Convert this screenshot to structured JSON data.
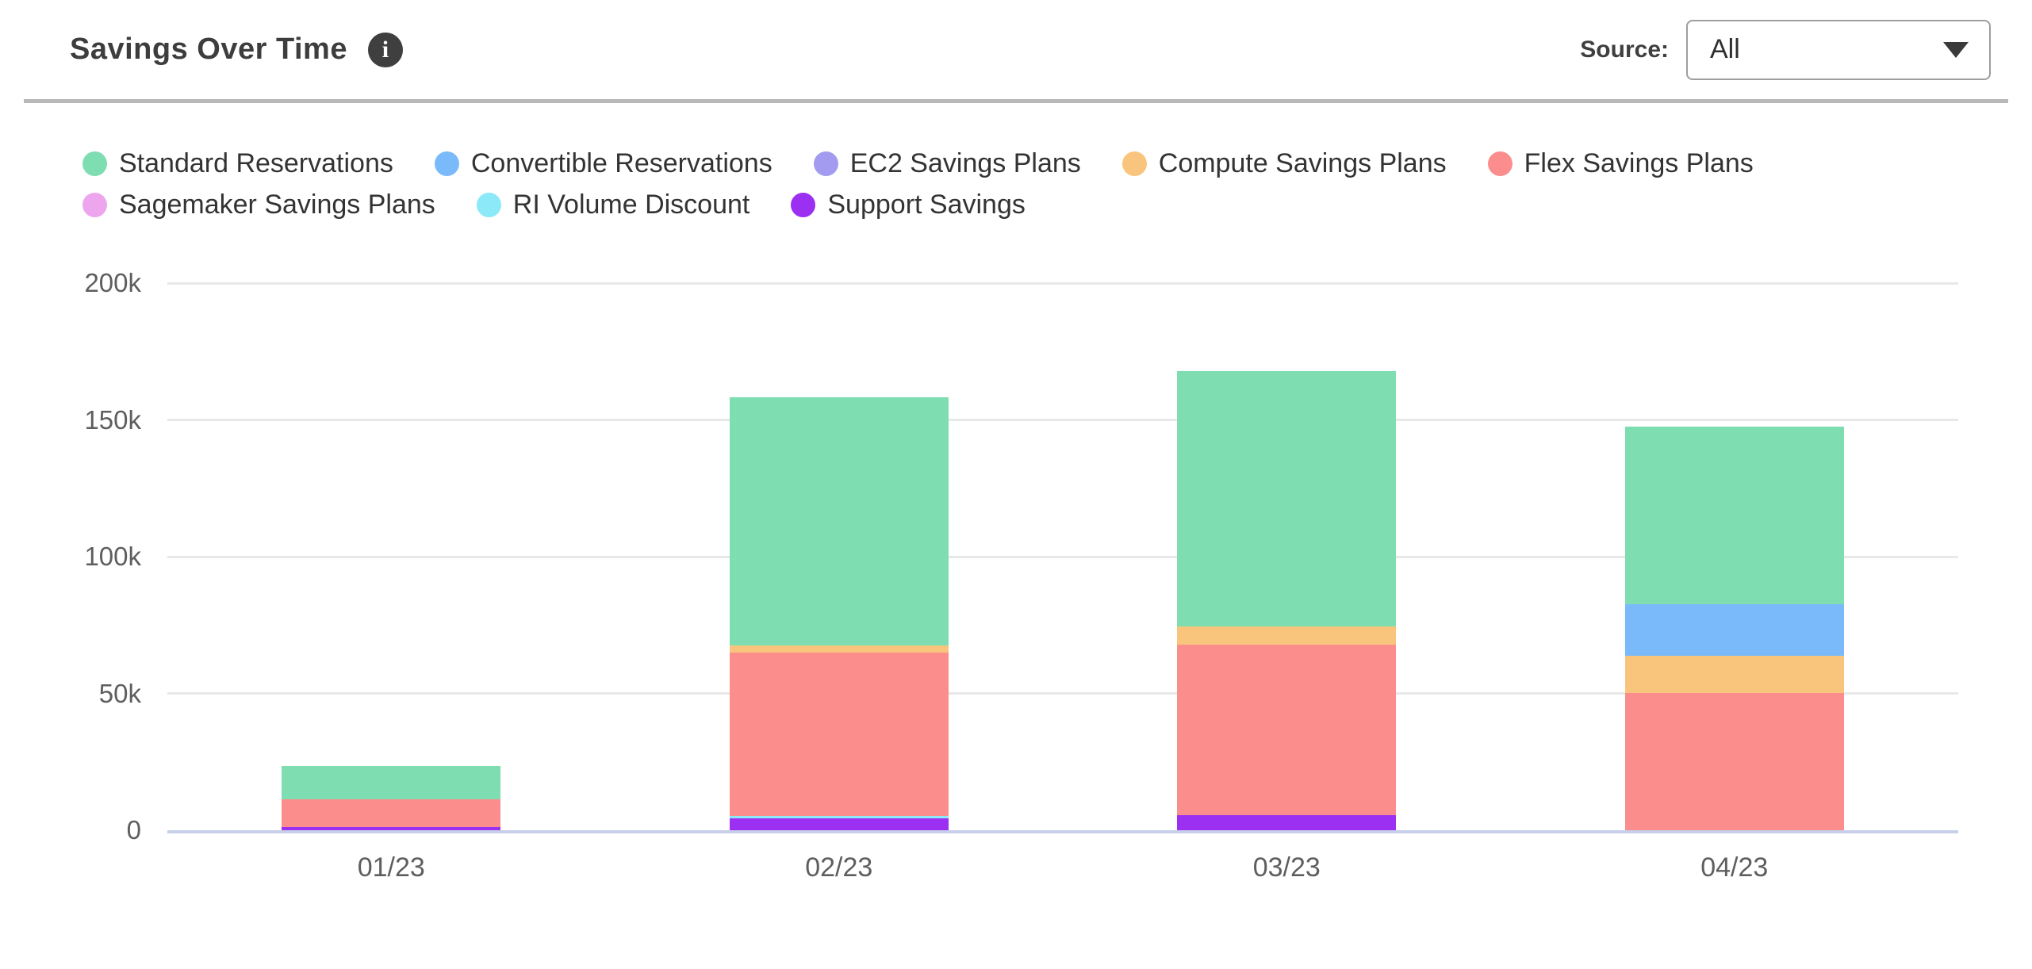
{
  "header": {
    "title": "Savings Over Time",
    "info_glyph": "i",
    "source_label": "Source:",
    "source_value": "All"
  },
  "chart_data": {
    "type": "bar",
    "stacked": true,
    "title": "Savings Over Time",
    "categories": [
      "01/23",
      "02/23",
      "03/23",
      "04/23"
    ],
    "series": [
      {
        "name": "Standard Reservations",
        "color": "#7EDEB1",
        "values": [
          12200,
          90700,
          93300,
          64900
        ]
      },
      {
        "name": "Convertible Reservations",
        "color": "#7ABAFA",
        "values": [
          0,
          0,
          0,
          18800
        ]
      },
      {
        "name": "EC2 Savings Plans",
        "color": "#A29BF0",
        "values": [
          0,
          0,
          0,
          0
        ]
      },
      {
        "name": "Compute Savings Plans",
        "color": "#F9C57C",
        "values": [
          0,
          2600,
          6700,
          13600
        ]
      },
      {
        "name": "Flex Savings Plans",
        "color": "#FB8D8D",
        "values": [
          10100,
          59700,
          62300,
          50100
        ]
      },
      {
        "name": "Sagemaker Savings Plans",
        "color": "#EDA6EE",
        "values": [
          0,
          0,
          0,
          0
        ]
      },
      {
        "name": "RI Volume Discount",
        "color": "#8CE9F7",
        "values": [
          0,
          900,
          0,
          0
        ]
      },
      {
        "name": "Support Savings",
        "color": "#9B30F2",
        "values": [
          1200,
          4300,
          5500,
          0
        ]
      }
    ],
    "stack_order_bottom_to_top": [
      "Support Savings",
      "RI Volume Discount",
      "Sagemaker Savings Plans",
      "Flex Savings Plans",
      "Compute Savings Plans",
      "EC2 Savings Plans",
      "Convertible Reservations",
      "Standard Reservations"
    ],
    "y_ticks": [
      {
        "label": "0",
        "value": 0
      },
      {
        "label": "50k",
        "value": 50000
      },
      {
        "label": "100k",
        "value": 100000
      },
      {
        "label": "150k",
        "value": 150000
      },
      {
        "label": "200k",
        "value": 200000
      }
    ],
    "ylim": [
      0,
      200000
    ],
    "grid": true,
    "legend_position": "top",
    "colors": {
      "axis_line": "#C7CFEA",
      "gridline": "#E8E8E8",
      "tick_text": "#5E5E5E"
    }
  }
}
